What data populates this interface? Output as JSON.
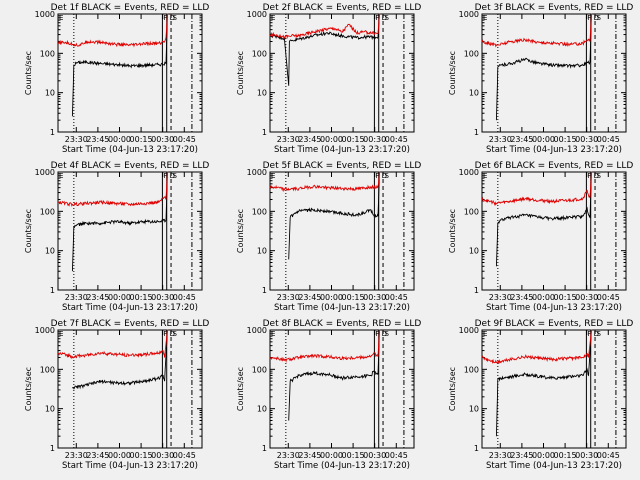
{
  "page": {
    "ylabel": "Counts/sec",
    "xlabel": "Start Time (04-Jun-13 23:17:20)",
    "xticks": [
      "23:30",
      "23:45",
      "00:00",
      "00:15",
      "00:30",
      "00:45"
    ],
    "yticks": [
      "1",
      "10",
      "100",
      "1000"
    ]
  },
  "colors": {
    "events": "#000000",
    "lld": "#e00000",
    "axes": "#000000",
    "background": "#f0f0f0"
  },
  "chart_data": [
    {
      "type": "line",
      "title": "Det 1f BLACK = Events, RED = LLD",
      "xlabel": "Start Time (04-Jun-13 23:17:20)",
      "ylabel": "Counts/sec",
      "x_unit": "minutes after 23:17:20",
      "yscale": "log",
      "ylim": [
        1,
        1000
      ],
      "xlim": [
        0,
        100
      ],
      "markers": [
        "F",
        "D",
        "E",
        "S"
      ],
      "series": [
        {
          "name": "Events",
          "x": [
            10,
            11,
            13,
            20,
            30,
            40,
            50,
            60,
            70,
            75,
            76,
            76.5
          ],
          "y": [
            2.5,
            50,
            58,
            60,
            55,
            52,
            48,
            50,
            52,
            55,
            1000,
            1000
          ]
        },
        {
          "name": "LLD",
          "x": [
            0,
            5,
            10,
            15,
            20,
            30,
            40,
            50,
            60,
            70,
            74,
            75,
            76,
            76.5
          ],
          "y": [
            180,
            190,
            170,
            160,
            200,
            190,
            170,
            160,
            175,
            180,
            200,
            250,
            1000,
            1000
          ]
        }
      ]
    },
    {
      "type": "line",
      "title": "Det 2f BLACK = Events, RED = LLD",
      "xlabel": "Start Time (04-Jun-13 23:17:20)",
      "ylabel": "Counts/sec",
      "x_unit": "minutes after 23:17:20",
      "yscale": "log",
      "ylim": [
        1,
        1000
      ],
      "xlim": [
        0,
        100
      ],
      "markers": [
        "F",
        "D",
        "E",
        "S"
      ],
      "series": [
        {
          "name": "Events",
          "x": [
            0,
            5,
            10,
            13,
            13.5,
            15,
            20,
            30,
            40,
            50,
            60,
            65,
            75,
            76,
            76.5
          ],
          "y": [
            280,
            270,
            240,
            15,
            200,
            210,
            230,
            280,
            330,
            280,
            250,
            260,
            260,
            1000,
            1000
          ]
        },
        {
          "name": "LLD",
          "x": [
            0,
            5,
            10,
            15,
            20,
            30,
            40,
            45,
            50,
            55,
            60,
            65,
            75,
            76,
            76.5
          ],
          "y": [
            300,
            290,
            260,
            280,
            280,
            350,
            420,
            430,
            350,
            550,
            330,
            350,
            320,
            1000,
            1000
          ]
        }
      ]
    },
    {
      "type": "line",
      "title": "Det 3f BLACK = Events, RED = LLD",
      "xlabel": "Start Time (04-Jun-13 23:17:20)",
      "ylabel": "Counts/sec",
      "x_unit": "minutes after 23:17:20",
      "yscale": "log",
      "ylim": [
        1,
        1000
      ],
      "xlim": [
        0,
        100
      ],
      "markers": [
        "F",
        "D",
        "E",
        "S"
      ],
      "series": [
        {
          "name": "Events",
          "x": [
            10,
            11,
            13,
            20,
            30,
            40,
            50,
            60,
            70,
            75,
            76,
            76.5
          ],
          "y": [
            2,
            45,
            50,
            55,
            70,
            55,
            50,
            48,
            50,
            60,
            1000,
            1000
          ]
        },
        {
          "name": "LLD",
          "x": [
            0,
            5,
            10,
            20,
            30,
            40,
            50,
            60,
            70,
            74,
            75,
            76,
            76.5
          ],
          "y": [
            200,
            180,
            160,
            200,
            220,
            190,
            180,
            170,
            180,
            230,
            200,
            1000,
            1000
          ]
        }
      ]
    },
    {
      "type": "line",
      "title": "Det 4f BLACK = Events, RED = LLD",
      "xlabel": "Start Time (04-Jun-13 23:17:20)",
      "ylabel": "Counts/sec",
      "x_unit": "minutes after 23:17:20",
      "yscale": "log",
      "ylim": [
        1,
        1000
      ],
      "xlim": [
        0,
        100
      ],
      "markers": [
        "F",
        "D",
        "E",
        "S"
      ],
      "series": [
        {
          "name": "Events",
          "x": [
            10,
            11,
            13,
            20,
            30,
            40,
            50,
            60,
            70,
            75,
            76,
            76.5
          ],
          "y": [
            3,
            40,
            45,
            50,
            50,
            55,
            50,
            55,
            55,
            60,
            1000,
            1000
          ]
        },
        {
          "name": "LLD",
          "x": [
            0,
            5,
            10,
            20,
            30,
            40,
            50,
            60,
            70,
            74,
            75,
            76,
            76.5
          ],
          "y": [
            170,
            160,
            150,
            160,
            170,
            160,
            150,
            160,
            170,
            230,
            200,
            1000,
            1000
          ]
        }
      ]
    },
    {
      "type": "line",
      "title": "Det 5f BLACK = Events, RED = LLD",
      "xlabel": "Start Time (04-Jun-13 23:17:20)",
      "ylabel": "Counts/sec",
      "x_unit": "minutes after 23:17:20",
      "yscale": "log",
      "ylim": [
        1,
        1000
      ],
      "xlim": [
        0,
        100
      ],
      "markers": [
        "F",
        "D",
        "E",
        "S"
      ],
      "series": [
        {
          "name": "Events",
          "x": [
            13,
            14,
            16,
            20,
            30,
            40,
            50,
            60,
            65,
            70,
            72,
            75,
            76,
            76.5
          ],
          "y": [
            6,
            70,
            80,
            100,
            110,
            100,
            90,
            80,
            90,
            110,
            80,
            75,
            1000,
            1000
          ]
        },
        {
          "name": "LLD",
          "x": [
            0,
            5,
            10,
            20,
            30,
            40,
            50,
            60,
            65,
            70,
            75,
            76,
            76.5
          ],
          "y": [
            420,
            400,
            360,
            380,
            430,
            400,
            380,
            370,
            390,
            420,
            420,
            1000,
            1000
          ]
        }
      ]
    },
    {
      "type": "line",
      "title": "Det 6f BLACK = Events, RED = LLD",
      "xlabel": "Start Time (04-Jun-13 23:17:20)",
      "ylabel": "Counts/sec",
      "x_unit": "minutes after 23:17:20",
      "yscale": "log",
      "ylim": [
        1,
        1000
      ],
      "xlim": [
        0,
        100
      ],
      "markers": [
        "F",
        "D",
        "E",
        "S"
      ],
      "series": [
        {
          "name": "Events",
          "x": [
            10,
            11,
            13,
            20,
            30,
            40,
            50,
            60,
            70,
            73,
            74,
            75,
            76,
            76.5
          ],
          "y": [
            4,
            50,
            60,
            70,
            80,
            70,
            65,
            70,
            75,
            120,
            80,
            70,
            1000,
            1000
          ]
        },
        {
          "name": "LLD",
          "x": [
            0,
            5,
            10,
            20,
            30,
            40,
            50,
            60,
            70,
            73,
            74,
            75,
            76,
            76.5
          ],
          "y": [
            200,
            180,
            160,
            180,
            210,
            190,
            180,
            190,
            210,
            350,
            250,
            220,
            1000,
            1000
          ]
        }
      ]
    },
    {
      "type": "line",
      "title": "Det 7f BLACK = Events, RED = LLD",
      "xlabel": "Start Time (04-Jun-13 23:17:20)",
      "ylabel": "Counts/sec",
      "x_unit": "minutes after 23:17:20",
      "yscale": "log",
      "ylim": [
        1,
        1000
      ],
      "xlim": [
        0,
        100
      ],
      "markers": [
        "F",
        "D",
        "E",
        "S"
      ],
      "series": [
        {
          "name": "Events",
          "x": [
            10,
            13,
            20,
            30,
            40,
            50,
            60,
            70,
            73,
            74,
            76,
            76.5
          ],
          "y": [
            35,
            35,
            40,
            50,
            45,
            45,
            50,
            60,
            70,
            50,
            1000,
            1000
          ]
        },
        {
          "name": "LLD",
          "x": [
            0,
            5,
            10,
            20,
            30,
            40,
            50,
            60,
            70,
            73,
            74,
            76,
            76.5
          ],
          "y": [
            250,
            240,
            210,
            230,
            260,
            240,
            230,
            240,
            260,
            300,
            200,
            1000,
            1000
          ]
        }
      ]
    },
    {
      "type": "line",
      "title": "Det 8f BLACK = Events, RED = LLD",
      "xlabel": "Start Time (04-Jun-13 23:17:20)",
      "ylabel": "Counts/sec",
      "x_unit": "minutes after 23:17:20",
      "yscale": "log",
      "ylim": [
        1,
        1000
      ],
      "xlim": [
        0,
        100
      ],
      "markers": [
        "F",
        "D",
        "E",
        "S"
      ],
      "series": [
        {
          "name": "Events",
          "x": [
            13,
            14,
            16,
            20,
            30,
            40,
            50,
            60,
            70,
            72,
            75,
            76,
            76.5
          ],
          "y": [
            5,
            50,
            55,
            70,
            80,
            75,
            60,
            65,
            70,
            90,
            75,
            1000,
            1000
          ]
        },
        {
          "name": "LLD",
          "x": [
            0,
            5,
            10,
            20,
            30,
            40,
            50,
            60,
            70,
            72,
            75,
            76,
            76.5
          ],
          "y": [
            200,
            190,
            170,
            200,
            220,
            210,
            190,
            200,
            210,
            260,
            210,
            1000,
            1000
          ]
        }
      ]
    },
    {
      "type": "line",
      "title": "Det 9f BLACK = Events, RED = LLD",
      "xlabel": "Start Time (04-Jun-13 23:17:20)",
      "ylabel": "Counts/sec",
      "x_unit": "minutes after 23:17:20",
      "yscale": "log",
      "ylim": [
        1,
        1000
      ],
      "xlim": [
        0,
        100
      ],
      "markers": [
        "F",
        "D",
        "E",
        "S"
      ],
      "series": [
        {
          "name": "Events",
          "x": [
            10,
            11,
            13,
            20,
            30,
            40,
            50,
            60,
            70,
            73,
            74,
            76,
            76.5
          ],
          "y": [
            2,
            55,
            60,
            65,
            75,
            65,
            60,
            65,
            70,
            100,
            70,
            1000,
            1000
          ]
        },
        {
          "name": "LLD",
          "x": [
            0,
            5,
            10,
            20,
            30,
            40,
            50,
            60,
            70,
            73,
            74,
            76,
            76.5
          ],
          "y": [
            200,
            170,
            150,
            180,
            210,
            190,
            180,
            190,
            200,
            260,
            200,
            1000,
            1000
          ]
        }
      ]
    }
  ]
}
